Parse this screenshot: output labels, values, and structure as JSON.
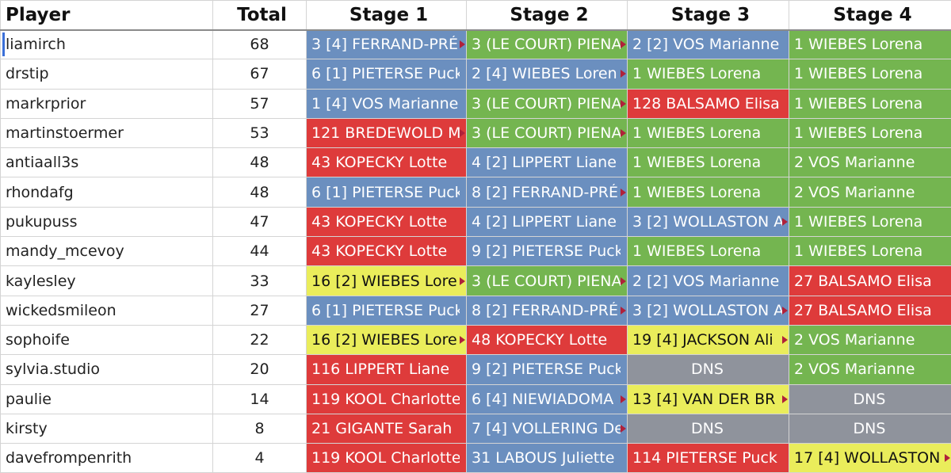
{
  "headers": [
    "Player",
    "Total",
    "Stage 1",
    "Stage 2",
    "Stage 3",
    "Stage 4"
  ],
  "colors": {
    "blue": "#6b8fbf",
    "green": "#74b550",
    "red": "#de3b3b",
    "yellow": "#eaed5b",
    "gray": "#8f939c"
  },
  "rows": [
    {
      "player": "liamirch",
      "total": "68",
      "stages": [
        {
          "text": "3 [4] FERRAND-PRÉ",
          "color": "blue",
          "trunc": true
        },
        {
          "text": "3 (LE COURT) PIENA",
          "color": "green",
          "trunc": true
        },
        {
          "text": "2 [2] VOS Marianne",
          "color": "blue"
        },
        {
          "text": "1 WIEBES Lorena",
          "color": "green"
        }
      ]
    },
    {
      "player": "drstip",
      "total": "67",
      "stages": [
        {
          "text": "6 [1] PIETERSE Puck",
          "color": "blue"
        },
        {
          "text": "2 [4] WIEBES Loren",
          "color": "blue",
          "trunc": true
        },
        {
          "text": "1 WIEBES Lorena",
          "color": "green"
        },
        {
          "text": "1 WIEBES Lorena",
          "color": "green"
        }
      ]
    },
    {
      "player": "markrprior",
      "total": "57",
      "stages": [
        {
          "text": "1 [4] VOS Marianne",
          "color": "blue"
        },
        {
          "text": "3 (LE COURT) PIENA",
          "color": "green",
          "trunc": true
        },
        {
          "text": "128 BALSAMO Elisa",
          "color": "red"
        },
        {
          "text": "1 WIEBES Lorena",
          "color": "green"
        }
      ]
    },
    {
      "player": "martinstoermer",
      "total": "53",
      "stages": [
        {
          "text": "121 BREDEWOLD M",
          "color": "red",
          "trunc": true
        },
        {
          "text": "3 (LE COURT) PIENA",
          "color": "green",
          "trunc": true
        },
        {
          "text": "1 WIEBES Lorena",
          "color": "green"
        },
        {
          "text": "1 WIEBES Lorena",
          "color": "green"
        }
      ]
    },
    {
      "player": "antiaall3s",
      "total": "48",
      "stages": [
        {
          "text": "43 KOPECKY Lotte",
          "color": "red"
        },
        {
          "text": "4 [2] LIPPERT Liane",
          "color": "blue"
        },
        {
          "text": "1 WIEBES Lorena",
          "color": "green"
        },
        {
          "text": "2 VOS Marianne",
          "color": "green"
        }
      ]
    },
    {
      "player": "rhondafg",
      "total": "48",
      "stages": [
        {
          "text": "6 [1] PIETERSE Puck",
          "color": "blue"
        },
        {
          "text": "8 [2] FERRAND-PRÉ",
          "color": "blue",
          "trunc": true
        },
        {
          "text": "1 WIEBES Lorena",
          "color": "green"
        },
        {
          "text": "2 VOS Marianne",
          "color": "green"
        }
      ]
    },
    {
      "player": "pukupuss",
      "total": "47",
      "stages": [
        {
          "text": "43 KOPECKY Lotte",
          "color": "red"
        },
        {
          "text": "4 [2] LIPPERT Liane",
          "color": "blue"
        },
        {
          "text": "3 [2] WOLLASTON A",
          "color": "blue",
          "trunc": true
        },
        {
          "text": "1 WIEBES Lorena",
          "color": "green"
        }
      ]
    },
    {
      "player": "mandy_mcevoy",
      "total": "44",
      "stages": [
        {
          "text": "43 KOPECKY Lotte",
          "color": "red"
        },
        {
          "text": "9 [2] PIETERSE Puck",
          "color": "blue"
        },
        {
          "text": "1 WIEBES Lorena",
          "color": "green"
        },
        {
          "text": "1 WIEBES Lorena",
          "color": "green"
        }
      ]
    },
    {
      "player": "kaylesley",
      "total": "33",
      "stages": [
        {
          "text": "16 [2] WIEBES Lore",
          "color": "yellow",
          "trunc": true
        },
        {
          "text": "3 (LE COURT) PIENA",
          "color": "green",
          "trunc": true
        },
        {
          "text": "2 [2] VOS Marianne",
          "color": "blue"
        },
        {
          "text": "27 BALSAMO Elisa",
          "color": "red"
        }
      ]
    },
    {
      "player": "wickedsmileon",
      "total": "27",
      "stages": [
        {
          "text": "6 [1] PIETERSE Puck",
          "color": "blue"
        },
        {
          "text": "8 [2] FERRAND-PRÉ",
          "color": "blue",
          "trunc": true
        },
        {
          "text": "3 [2] WOLLASTON A",
          "color": "blue",
          "trunc": true
        },
        {
          "text": "27 BALSAMO Elisa",
          "color": "red"
        }
      ]
    },
    {
      "player": "sophoife",
      "total": "22",
      "stages": [
        {
          "text": "16 [2] WIEBES Lore",
          "color": "yellow",
          "trunc": true
        },
        {
          "text": "48 KOPECKY Lotte",
          "color": "red"
        },
        {
          "text": "19 [4] JACKSON Ali",
          "color": "yellow",
          "trunc": true
        },
        {
          "text": "2 VOS Marianne",
          "color": "green"
        }
      ]
    },
    {
      "player": "sylvia.studio",
      "total": "20",
      "stages": [
        {
          "text": "116 LIPPERT Liane",
          "color": "red"
        },
        {
          "text": "9 [2] PIETERSE Puck",
          "color": "blue"
        },
        {
          "text": "DNS",
          "color": "gray"
        },
        {
          "text": "2 VOS Marianne",
          "color": "green"
        }
      ]
    },
    {
      "player": "paulie",
      "total": "14",
      "stages": [
        {
          "text": "119 KOOL Charlotte",
          "color": "red"
        },
        {
          "text": "6 [4] NIEWIADOMA",
          "color": "blue",
          "trunc": true
        },
        {
          "text": "13 [4] VAN DER BR",
          "color": "yellow",
          "trunc": true
        },
        {
          "text": "DNS",
          "color": "gray"
        }
      ]
    },
    {
      "player": "kirsty",
      "total": "8",
      "stages": [
        {
          "text": "21 GIGANTE Sarah",
          "color": "red"
        },
        {
          "text": "7 [4] VOLLERING De",
          "color": "blue",
          "trunc": true
        },
        {
          "text": "DNS",
          "color": "gray"
        },
        {
          "text": "DNS",
          "color": "gray"
        }
      ]
    },
    {
      "player": "davefrompenrith",
      "total": "4",
      "stages": [
        {
          "text": "119 KOOL Charlotte",
          "color": "red"
        },
        {
          "text": "31 LABOUS Juliette",
          "color": "blue"
        },
        {
          "text": "114 PIETERSE Puck",
          "color": "red"
        },
        {
          "text": "17 [4] WOLLASTON",
          "color": "yellow",
          "trunc": true
        }
      ]
    }
  ]
}
